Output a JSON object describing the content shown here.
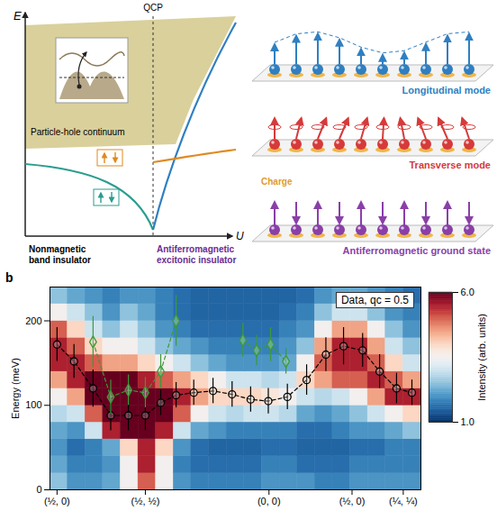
{
  "diagram": {
    "axis_energy": "E",
    "axis_u": "U",
    "qcp": "QCP",
    "continuum": "Particle-hole continuum",
    "left_phase": "Nonmagnetic band insulator",
    "right_phase": "Antiferromagnetic excitonic insulator",
    "modes": [
      "Longitudinal mode",
      "Transverse mode",
      "Antiferromagnetic ground state"
    ],
    "charge": "Charge"
  },
  "chart_data": {
    "type": "heatmap",
    "panel_label": "b",
    "annotation": "Data, qc = 0.5",
    "y_label": "Energy (meV)",
    "xlim": [
      -0.04,
      2.06
    ],
    "xticks": [
      {
        "value": 0,
        "label": "(½, 0)"
      },
      {
        "value": 0.5,
        "label": "(½, ½)"
      },
      {
        "value": 1.2,
        "label": "(0, 0)"
      },
      {
        "value": 1.67,
        "label": "(½, 0)"
      },
      {
        "value": 1.96,
        "label": "(¼, ¼)"
      }
    ],
    "ylim": [
      0,
      240
    ],
    "yticks": [
      0,
      100,
      200
    ],
    "heatmap": {
      "x_edges": [
        -0.04,
        0.06,
        0.16,
        0.26,
        0.36,
        0.46,
        0.56,
        0.66,
        0.76,
        0.86,
        0.96,
        1.06,
        1.16,
        1.26,
        1.36,
        1.46,
        1.56,
        1.66,
        1.76,
        1.86,
        1.96,
        2.06
      ],
      "energy_edges": [
        0,
        20,
        40,
        60,
        80,
        100,
        120,
        140,
        160,
        180,
        200,
        220,
        240
      ],
      "intensity": [
        [
          2.5,
          2,
          2,
          2.2,
          3.5,
          5,
          3.5,
          2,
          1.8,
          1.8,
          1.8,
          1.8,
          2,
          2,
          2,
          1.8,
          1.8,
          2,
          2,
          2,
          2
        ],
        [
          2.2,
          1.8,
          1.8,
          2,
          3.5,
          5.5,
          3.5,
          1.8,
          1.6,
          1.6,
          1.6,
          1.6,
          1.8,
          1.8,
          1.6,
          1.6,
          1.6,
          1.8,
          1.8,
          1.8,
          1.8
        ],
        [
          2,
          1.6,
          1.8,
          2.2,
          4,
          5.5,
          4,
          2,
          1.6,
          1.5,
          1.5,
          1.5,
          1.6,
          1.6,
          1.5,
          1.5,
          1.5,
          1.6,
          1.6,
          1.8,
          1.8
        ],
        [
          2.2,
          2,
          3,
          5.5,
          6,
          6,
          5.5,
          3,
          2.2,
          2,
          1.8,
          1.8,
          1.8,
          1.8,
          1.6,
          1.6,
          1.8,
          2,
          2,
          2.2,
          2.5
        ],
        [
          2.8,
          3,
          5,
          6,
          6,
          6,
          6,
          5,
          3.5,
          3,
          2.8,
          3,
          3,
          2.8,
          2.2,
          2,
          2.2,
          2.5,
          3,
          3.5,
          4
        ],
        [
          3.5,
          4.5,
          6,
          6,
          6,
          6,
          6,
          5.5,
          4.5,
          4,
          4,
          4,
          3.8,
          3.5,
          3,
          2.8,
          3,
          3.5,
          4.5,
          5.5,
          5.5
        ],
        [
          4.5,
          5.5,
          6,
          6,
          6,
          5.5,
          5,
          4.5,
          4,
          3.5,
          3,
          3,
          2.8,
          3,
          4,
          4.5,
          5,
          5,
          5.5,
          5,
          4.5
        ],
        [
          5.5,
          5.5,
          5,
          4.5,
          4.5,
          4,
          3.5,
          3,
          2.5,
          2.2,
          2,
          2,
          2,
          2.2,
          3.5,
          5,
          5.5,
          5.5,
          5,
          4,
          3
        ],
        [
          5.5,
          5,
          4,
          3.5,
          3.5,
          3,
          2.5,
          2.2,
          2,
          1.8,
          1.8,
          1.8,
          1.8,
          2,
          2.5,
          4.5,
          5.5,
          5.5,
          4.5,
          3,
          2.5
        ],
        [
          5,
          4,
          3,
          2.5,
          3,
          2.5,
          2,
          1.8,
          1.6,
          1.6,
          1.6,
          1.6,
          1.6,
          1.8,
          2,
          3.5,
          4.5,
          4.5,
          3.5,
          2.5,
          2
        ],
        [
          3.5,
          3,
          2.5,
          2,
          2.5,
          2.2,
          1.8,
          1.6,
          1.5,
          1.5,
          1.5,
          1.5,
          1.5,
          1.6,
          1.8,
          2.5,
          3,
          3,
          2.5,
          2,
          1.8
        ],
        [
          2.5,
          2.2,
          2,
          1.8,
          2,
          2,
          1.8,
          1.6,
          1.5,
          1.5,
          1.5,
          1.5,
          1.5,
          1.5,
          1.6,
          2,
          2.2,
          2.2,
          2,
          1.8,
          1.6
        ]
      ]
    },
    "colorbar": {
      "label": "Intensity (arb. units)",
      "range": [
        1,
        6
      ],
      "ticks": [
        1,
        6
      ]
    },
    "series": [
      {
        "color": "#000000",
        "marker": "circle",
        "line_style": "dashed",
        "x": [
          0,
          0.096,
          0.204,
          0.304,
          0.404,
          0.5,
          0.587,
          0.674,
          0.774,
          0.883,
          0.991,
          1.096,
          1.196,
          1.304,
          1.413,
          1.522,
          1.622,
          1.73,
          1.826,
          1.922,
          2.009
        ],
        "values": [
          172,
          152,
          120,
          88,
          88,
          88,
          103,
          112,
          115,
          117,
          113,
          107,
          105,
          110,
          130,
          160,
          170,
          165,
          140,
          120,
          115
        ],
        "errors": [
          20,
          20,
          22,
          18,
          18,
          18,
          15,
          15,
          15,
          15,
          15,
          15,
          15,
          15,
          18,
          20,
          22,
          20,
          20,
          18,
          15
        ]
      },
      {
        "color": "#3a9a3a",
        "marker": "diamond",
        "line_style": "dashed",
        "x": [
          0.204,
          0.304,
          0.404,
          0.5,
          0.587,
          0.674
        ],
        "values": [
          175,
          110,
          118,
          115,
          140,
          200
        ],
        "errors": [
          30,
          20,
          18,
          18,
          20,
          30
        ]
      },
      {
        "color": "#3a9a3a",
        "marker": "diamond",
        "line_style": "dashed",
        "x": [
          1.052,
          1.13,
          1.209,
          1.296
        ],
        "values": [
          177,
          165,
          172,
          152
        ],
        "errors": [
          20,
          18,
          20,
          15
        ]
      }
    ]
  }
}
